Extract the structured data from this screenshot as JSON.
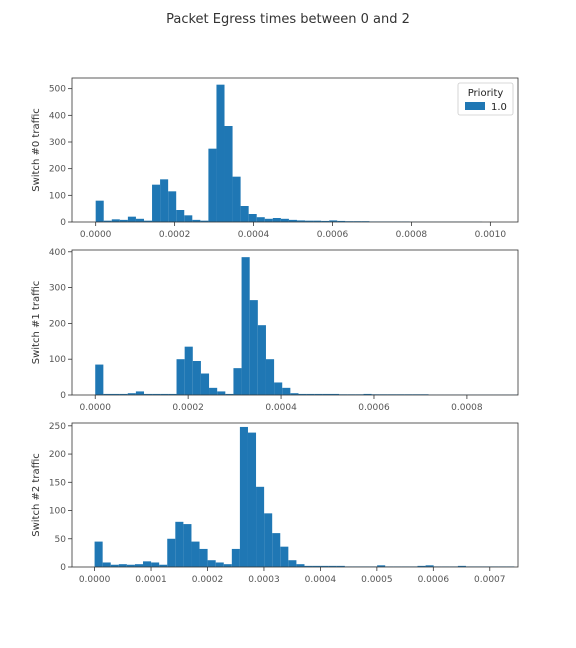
{
  "figure": {
    "suptitle": "Packet Egress times between 0 and 2",
    "legend": {
      "title": "Priority",
      "entries": [
        "1.0"
      ],
      "placement": "top-right"
    },
    "bar_color": "#1f77b4"
  },
  "chart_data": [
    {
      "type": "bar",
      "ylabel": "Switch #0 traffic",
      "xlim": [
        -6e-05,
        0.00107
      ],
      "ylim": [
        0,
        540
      ],
      "xticks": [
        0.0,
        0.0002,
        0.0004,
        0.0006,
        0.0008,
        0.001
      ],
      "xtick_labels": [
        "0.0000",
        "0.0002",
        "0.0004",
        "0.0006",
        "0.0008",
        "0.0010"
      ],
      "yticks": [
        0,
        100,
        200,
        300,
        400,
        500
      ],
      "ytick_labels": [
        "0",
        "100",
        "200",
        "300",
        "400",
        "500"
      ],
      "bin_start": 0.0,
      "bin_width": 2.04e-05,
      "values": [
        80,
        5,
        10,
        8,
        20,
        12,
        5,
        140,
        160,
        115,
        45,
        25,
        8,
        5,
        275,
        515,
        360,
        170,
        60,
        30,
        18,
        12,
        15,
        12,
        8,
        6,
        5,
        5,
        4,
        6,
        4,
        3,
        3,
        3,
        2,
        2,
        2,
        2,
        2,
        1,
        1,
        1,
        1,
        1,
        1,
        1,
        1,
        1,
        0,
        0,
        0,
        0
      ]
    },
    {
      "type": "bar",
      "ylabel": "Switch #1 traffic",
      "xlim": [
        -5e-05,
        0.00091
      ],
      "ylim": [
        0,
        405
      ],
      "xticks": [
        0.0,
        0.0002,
        0.0004,
        0.0006,
        0.0008
      ],
      "xtick_labels": [
        "0.0000",
        "0.0002",
        "0.0004",
        "0.0006",
        "0.0008"
      ],
      "yticks": [
        0,
        100,
        200,
        300,
        400
      ],
      "ytick_labels": [
        "0",
        "100",
        "200",
        "300",
        "400"
      ],
      "bin_start": 0.0,
      "bin_width": 1.75e-05,
      "values": [
        85,
        3,
        3,
        3,
        5,
        10,
        3,
        3,
        3,
        3,
        100,
        135,
        95,
        60,
        20,
        10,
        3,
        75,
        385,
        265,
        195,
        100,
        35,
        20,
        5,
        3,
        3,
        3,
        3,
        3,
        2,
        2,
        2,
        3,
        2,
        2,
        2,
        2,
        2,
        2,
        2,
        1,
        1,
        1,
        1,
        1,
        1,
        1,
        1,
        1,
        1,
        1
      ]
    },
    {
      "type": "bar",
      "ylabel": "Switch #2 traffic",
      "xlim": [
        -4e-05,
        0.00075
      ],
      "ylim": [
        0,
        255
      ],
      "xticks": [
        0.0,
        0.0001,
        0.0002,
        0.0003,
        0.0004,
        0.0005,
        0.0006,
        0.0007
      ],
      "xtick_labels": [
        "0.0000",
        "0.0001",
        "0.0002",
        "0.0003",
        "0.0004",
        "0.0005",
        "0.0006",
        "0.0007"
      ],
      "yticks": [
        0,
        50,
        100,
        150,
        200,
        250
      ],
      "ytick_labels": [
        "0",
        "50",
        "100",
        "150",
        "200",
        "250"
      ],
      "bin_start": 0.0,
      "bin_width": 1.43e-05,
      "values": [
        45,
        8,
        4,
        5,
        4,
        5,
        10,
        8,
        4,
        50,
        80,
        76,
        45,
        32,
        12,
        8,
        5,
        32,
        248,
        238,
        142,
        95,
        60,
        36,
        12,
        5,
        2,
        2,
        2,
        2,
        2,
        1,
        1,
        1,
        1,
        3,
        1,
        1,
        1,
        1,
        2,
        3,
        1,
        1,
        1,
        2,
        1,
        1,
        1,
        1,
        1,
        1
      ]
    }
  ]
}
